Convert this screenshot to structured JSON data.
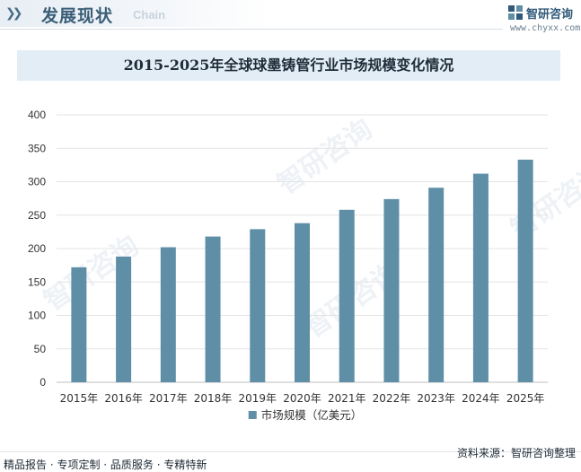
{
  "header": {
    "title": "发展现状",
    "subtitle": "Chain"
  },
  "logo": {
    "name": "智研咨询",
    "url": "www.chyxx.com"
  },
  "watermark_text": "智研咨询",
  "chart_data": {
    "type": "bar",
    "title": "2015-2025年全球球墨铸管行业市场规模变化情况",
    "categories": [
      "2015年",
      "2016年",
      "2017年",
      "2018年",
      "2019年",
      "2020年",
      "2021年",
      "2022年",
      "2023年",
      "2024年",
      "2025年"
    ],
    "series": [
      {
        "name": "市场规模（亿美元）",
        "values": [
          172,
          188,
          202,
          218,
          229,
          238,
          258,
          274,
          291,
          312,
          333
        ],
        "color": "#5f8fa6"
      }
    ],
    "xlabel": "",
    "ylabel": "",
    "ylim": [
      0,
      400
    ],
    "yticks": [
      0,
      50,
      100,
      150,
      200,
      250,
      300,
      350,
      400
    ],
    "grid": true,
    "legend": "bottom"
  },
  "footer": {
    "left": "精品报告 · 专项定制 · 品质服务 · 专精特新",
    "right": "资料来源：智研咨询整理"
  }
}
